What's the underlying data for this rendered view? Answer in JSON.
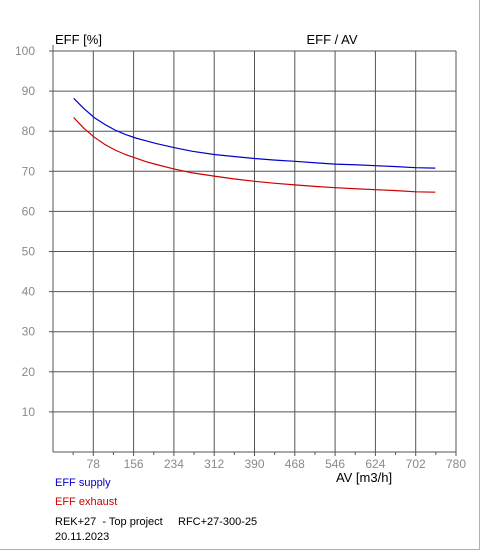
{
  "chart_data": {
    "type": "line",
    "title": "EFF / AV",
    "ylabel": "EFF [%]",
    "xlabel": "AV [m3/h]",
    "xlim": [
      0,
      780
    ],
    "ylim": [
      0,
      100
    ],
    "xticks": [
      78,
      156,
      234,
      312,
      390,
      468,
      546,
      624,
      702,
      780
    ],
    "yticks": [
      10,
      20,
      30,
      40,
      50,
      60,
      70,
      80,
      90,
      100
    ],
    "grid": true,
    "series": [
      {
        "name": "EFF supply",
        "color": "#0000cc",
        "points": [
          [
            40,
            88.2
          ],
          [
            60,
            85.6
          ],
          [
            80,
            83.4
          ],
          [
            100,
            81.7
          ],
          [
            120,
            80.3
          ],
          [
            140,
            79.2
          ],
          [
            160,
            78.3
          ],
          [
            180,
            77.6
          ],
          [
            200,
            76.9
          ],
          [
            234,
            75.9
          ],
          [
            270,
            75.0
          ],
          [
            312,
            74.2
          ],
          [
            350,
            73.7
          ],
          [
            390,
            73.2
          ],
          [
            430,
            72.8
          ],
          [
            468,
            72.5
          ],
          [
            510,
            72.1
          ],
          [
            546,
            71.8
          ],
          [
            590,
            71.6
          ],
          [
            624,
            71.4
          ],
          [
            660,
            71.2
          ],
          [
            702,
            70.9
          ],
          [
            740,
            70.8
          ]
        ]
      },
      {
        "name": "EFF exhaust",
        "color": "#cc0000",
        "points": [
          [
            40,
            83.4
          ],
          [
            60,
            80.7
          ],
          [
            80,
            78.5
          ],
          [
            100,
            76.7
          ],
          [
            120,
            75.3
          ],
          [
            140,
            74.2
          ],
          [
            160,
            73.3
          ],
          [
            180,
            72.4
          ],
          [
            200,
            71.7
          ],
          [
            234,
            70.6
          ],
          [
            270,
            69.6
          ],
          [
            312,
            68.8
          ],
          [
            350,
            68.1
          ],
          [
            390,
            67.5
          ],
          [
            430,
            67.0
          ],
          [
            468,
            66.6
          ],
          [
            510,
            66.2
          ],
          [
            546,
            65.9
          ],
          [
            590,
            65.6
          ],
          [
            624,
            65.4
          ],
          [
            660,
            65.2
          ],
          [
            702,
            64.9
          ],
          [
            740,
            64.8
          ]
        ]
      }
    ]
  },
  "footer": {
    "line1": "REK+27  - Top project     RFC+27-300-25",
    "line2": "20.11.2023"
  }
}
